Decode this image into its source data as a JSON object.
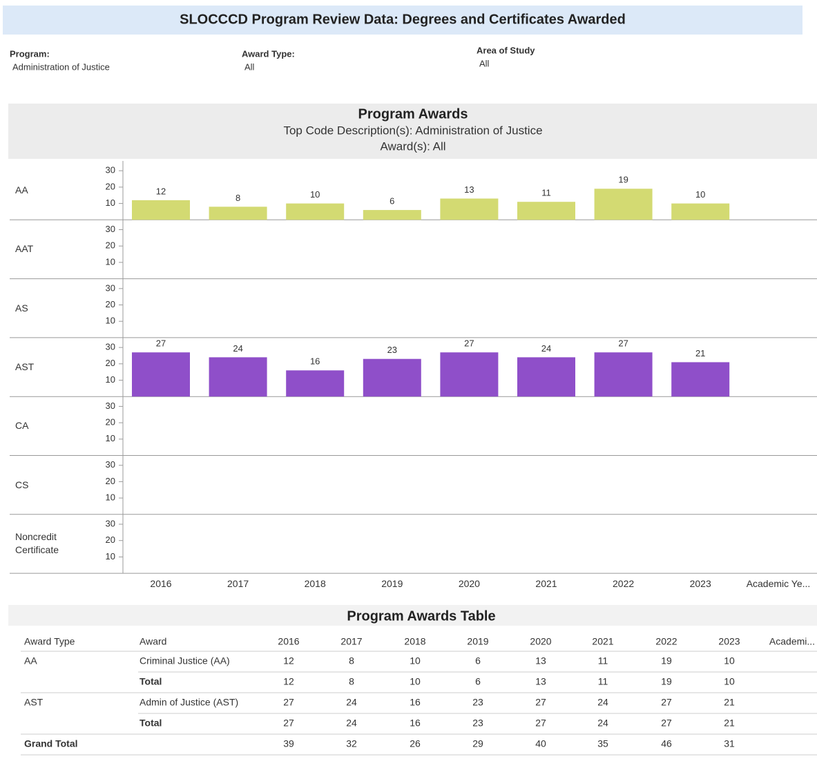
{
  "header": {
    "title": "SLOCCCD Program Review Data: Degrees and Certificates Awarded"
  },
  "filters": [
    {
      "label": "Program:",
      "value": "Administration of Justice"
    },
    {
      "label": "Award Type:",
      "value": "All"
    },
    {
      "label": "Area of Study",
      "value": "All"
    }
  ],
  "chart_data": {
    "type": "bar",
    "title": "Program Awards",
    "subtitle": [
      "Top Code Description(s): Administration of Justice",
      "Award(s): All"
    ],
    "categories": [
      "2016",
      "2017",
      "2018",
      "2019",
      "2020",
      "2021",
      "2022",
      "2023"
    ],
    "x_label": "Academic Ye...",
    "ylim": [
      0,
      36
    ],
    "yticks": [
      10,
      20,
      30
    ],
    "panels": [
      {
        "name": "AA",
        "color": "#d3da72",
        "values": [
          12,
          8,
          10,
          6,
          13,
          11,
          19,
          10
        ]
      },
      {
        "name": "AAT"
      },
      {
        "name": "AS"
      },
      {
        "name": "AST",
        "color": "#8f4fc9",
        "values": [
          27,
          24,
          16,
          23,
          27,
          24,
          27,
          21
        ]
      },
      {
        "name": "CA"
      },
      {
        "name": "CS"
      },
      {
        "name": "Noncredit Certificate"
      }
    ]
  },
  "table": {
    "title": "Program Awards Table",
    "columns": [
      "Award Type",
      "Award",
      "2016",
      "2017",
      "2018",
      "2019",
      "2020",
      "2021",
      "2022",
      "2023",
      "Academi..."
    ],
    "rows": [
      {
        "award_type": "AA",
        "award": "Criminal Justice (AA)",
        "values": [
          12,
          8,
          10,
          6,
          13,
          11,
          19,
          10
        ]
      },
      {
        "award": "Total",
        "values": [
          12,
          8,
          10,
          6,
          13,
          11,
          19,
          10
        ]
      },
      {
        "award_type": "AST",
        "award": "Admin of Justice (AST)",
        "values": [
          27,
          24,
          16,
          23,
          27,
          24,
          27,
          21
        ]
      },
      {
        "award": "Total",
        "values": [
          27,
          24,
          16,
          23,
          27,
          24,
          27,
          21
        ]
      }
    ],
    "grand_total": {
      "label": "Grand Total",
      "values": [
        39,
        32,
        26,
        29,
        40,
        35,
        46,
        31
      ]
    }
  }
}
